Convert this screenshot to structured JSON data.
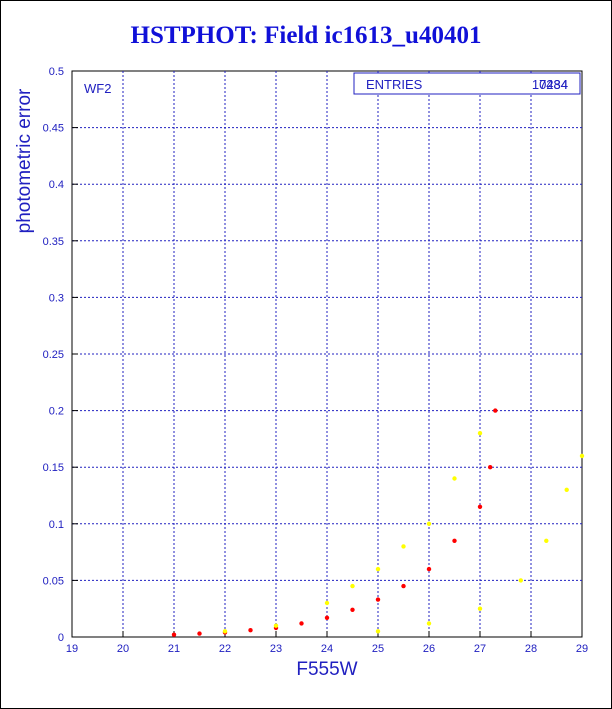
{
  "chart_data": {
    "type": "scatter",
    "title": "HSTPHOT: Field ic1613_u40401",
    "xlabel": "F555W",
    "ylabel": "photometric error",
    "xlim": [
      19,
      29
    ],
    "ylim": [
      0,
      0.5
    ],
    "xticks": [
      "19",
      "20",
      "21",
      "22",
      "23",
      "24",
      "25",
      "26",
      "27",
      "28",
      "29"
    ],
    "yticks": [
      "0",
      "0.05",
      "0.1",
      "0.15",
      "0.2",
      "0.25",
      "0.3",
      "0.35",
      "0.4",
      "0.45",
      "0.5"
    ],
    "grid": true,
    "panel_label": "WF2",
    "stats_box": {
      "label": "ENTRIES",
      "values": [
        "10484",
        "7234"
      ]
    },
    "series": [
      {
        "color": "#ff0000",
        "points": [
          [
            21.0,
            0.002
          ],
          [
            21.5,
            0.003
          ],
          [
            22.0,
            0.004
          ],
          [
            22.5,
            0.006
          ],
          [
            23.0,
            0.008
          ],
          [
            23.5,
            0.012
          ],
          [
            24.0,
            0.017
          ],
          [
            24.5,
            0.024
          ],
          [
            25.0,
            0.033
          ],
          [
            25.5,
            0.045
          ],
          [
            26.0,
            0.06
          ],
          [
            26.5,
            0.085
          ],
          [
            27.0,
            0.115
          ],
          [
            27.2,
            0.15
          ],
          [
            27.3,
            0.2
          ]
        ]
      },
      {
        "color": "#ffff00",
        "points": [
          [
            22.0,
            0.005
          ],
          [
            23.0,
            0.01
          ],
          [
            24.0,
            0.03
          ],
          [
            24.5,
            0.045
          ],
          [
            25.0,
            0.06
          ],
          [
            25.5,
            0.08
          ],
          [
            26.0,
            0.1
          ],
          [
            26.5,
            0.14
          ],
          [
            27.0,
            0.18
          ],
          [
            25.0,
            0.005
          ],
          [
            26.0,
            0.012
          ],
          [
            27.0,
            0.025
          ],
          [
            27.8,
            0.05
          ],
          [
            28.3,
            0.085
          ],
          [
            28.7,
            0.13
          ],
          [
            29.0,
            0.16
          ]
        ]
      }
    ]
  }
}
